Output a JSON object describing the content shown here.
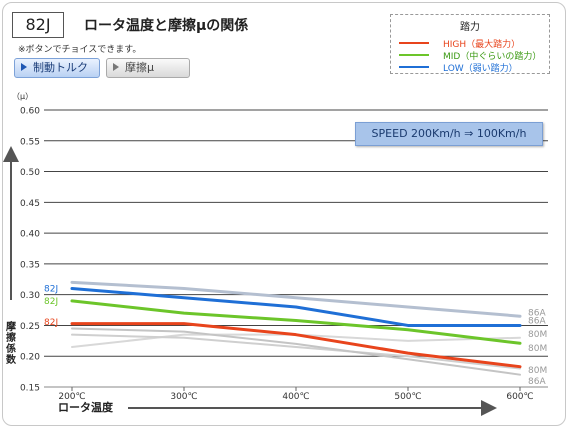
{
  "header": {
    "code": "82J",
    "title": "ロータ温度と摩擦μの関係",
    "note": "※ボタンでチョイスできます。"
  },
  "tabs": [
    {
      "label": "制動トルク",
      "active": true
    },
    {
      "label": "摩擦μ",
      "active": false
    }
  ],
  "legend": {
    "title": "踏力",
    "items": [
      {
        "label": "HIGH（最大踏力）",
        "color": "#e8441c"
      },
      {
        "label": "MID（中ぐらいの踏力）",
        "color": "#6cc52a"
      },
      {
        "label": "LOW（弱い踏力）",
        "color": "#1f6fd6"
      }
    ]
  },
  "speed_label": "SPEED  200Km/h ⇒ 100Km/h",
  "chart_data": {
    "type": "line",
    "title": "ロータ温度と摩擦μの関係",
    "xlabel": "ロータ温度",
    "ylabel": "摩擦係数",
    "yunit": "（μ）",
    "x": [
      200,
      300,
      400,
      500,
      600
    ],
    "xticks": [
      "200℃",
      "300℃",
      "400℃",
      "500℃",
      "600℃"
    ],
    "yticks": [
      "0.15",
      "0.20",
      "0.25",
      "0.30",
      "0.35",
      "0.40",
      "0.45",
      "0.50",
      "0.55",
      "0.60"
    ],
    "ylim": [
      0.15,
      0.6
    ],
    "grid": true,
    "series": [
      {
        "name": "80M",
        "color": "#d8d8d8",
        "width": 2,
        "values": [
          0.215,
          0.235,
          0.235,
          0.225,
          0.23
        ]
      },
      {
        "name": "80M",
        "color": "#cfcfcf",
        "width": 2,
        "values": [
          0.235,
          0.23,
          0.215,
          0.2,
          0.18
        ]
      },
      {
        "name": "86A",
        "color": "#c4c4c4",
        "width": 2,
        "values": [
          0.245,
          0.24,
          0.22,
          0.195,
          0.17
        ]
      },
      {
        "name": "86A",
        "color": "#b4bfd0",
        "width": 3,
        "values": [
          0.32,
          0.31,
          0.295,
          0.28,
          0.265
        ]
      },
      {
        "name": "82J",
        "color": "#e8441c",
        "width": 3,
        "values": [
          0.253,
          0.253,
          0.235,
          0.205,
          0.183
        ]
      },
      {
        "name": "82J",
        "color": "#6cc52a",
        "width": 3,
        "values": [
          0.29,
          0.27,
          0.258,
          0.243,
          0.221
        ]
      },
      {
        "name": "82J",
        "color": "#1f6fd6",
        "width": 3,
        "values": [
          0.31,
          0.295,
          0.28,
          0.25,
          0.25
        ]
      }
    ],
    "left_labels": [
      {
        "text": "82J",
        "color": "#1f6fd6",
        "y": 0.31
      },
      {
        "text": "82J",
        "color": "#6cc52a",
        "y": 0.29
      },
      {
        "text": "82J",
        "color": "#e8441c",
        "y": 0.256
      }
    ],
    "right_labels": [
      {
        "text": "86A",
        "y": 0.271
      },
      {
        "text": "86A",
        "y": 0.258
      },
      {
        "text": "80M",
        "y": 0.236
      },
      {
        "text": "80M",
        "y": 0.213
      },
      {
        "text": "80M",
        "y": 0.178
      },
      {
        "text": "86A",
        "y": 0.16
      }
    ]
  }
}
